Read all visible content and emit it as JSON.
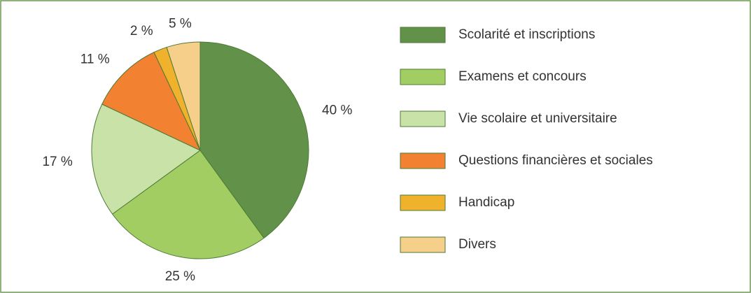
{
  "chart_data": {
    "type": "pie",
    "categories": [
      "Scolarité et inscriptions",
      "Examens et concours",
      "Vie scolaire et universitaire",
      "Questions financières et sociales",
      "Handicap",
      "Divers"
    ],
    "values": [
      40,
      25,
      17,
      11,
      2,
      5
    ],
    "value_labels": [
      "40 %",
      "25 %",
      "17 %",
      "11 %",
      "2 %",
      "5 %"
    ],
    "colors": [
      "#62924a",
      "#a2cd62",
      "#c9e2a8",
      "#f38132",
      "#f0b22c",
      "#f6d08a"
    ],
    "legend": "right"
  }
}
